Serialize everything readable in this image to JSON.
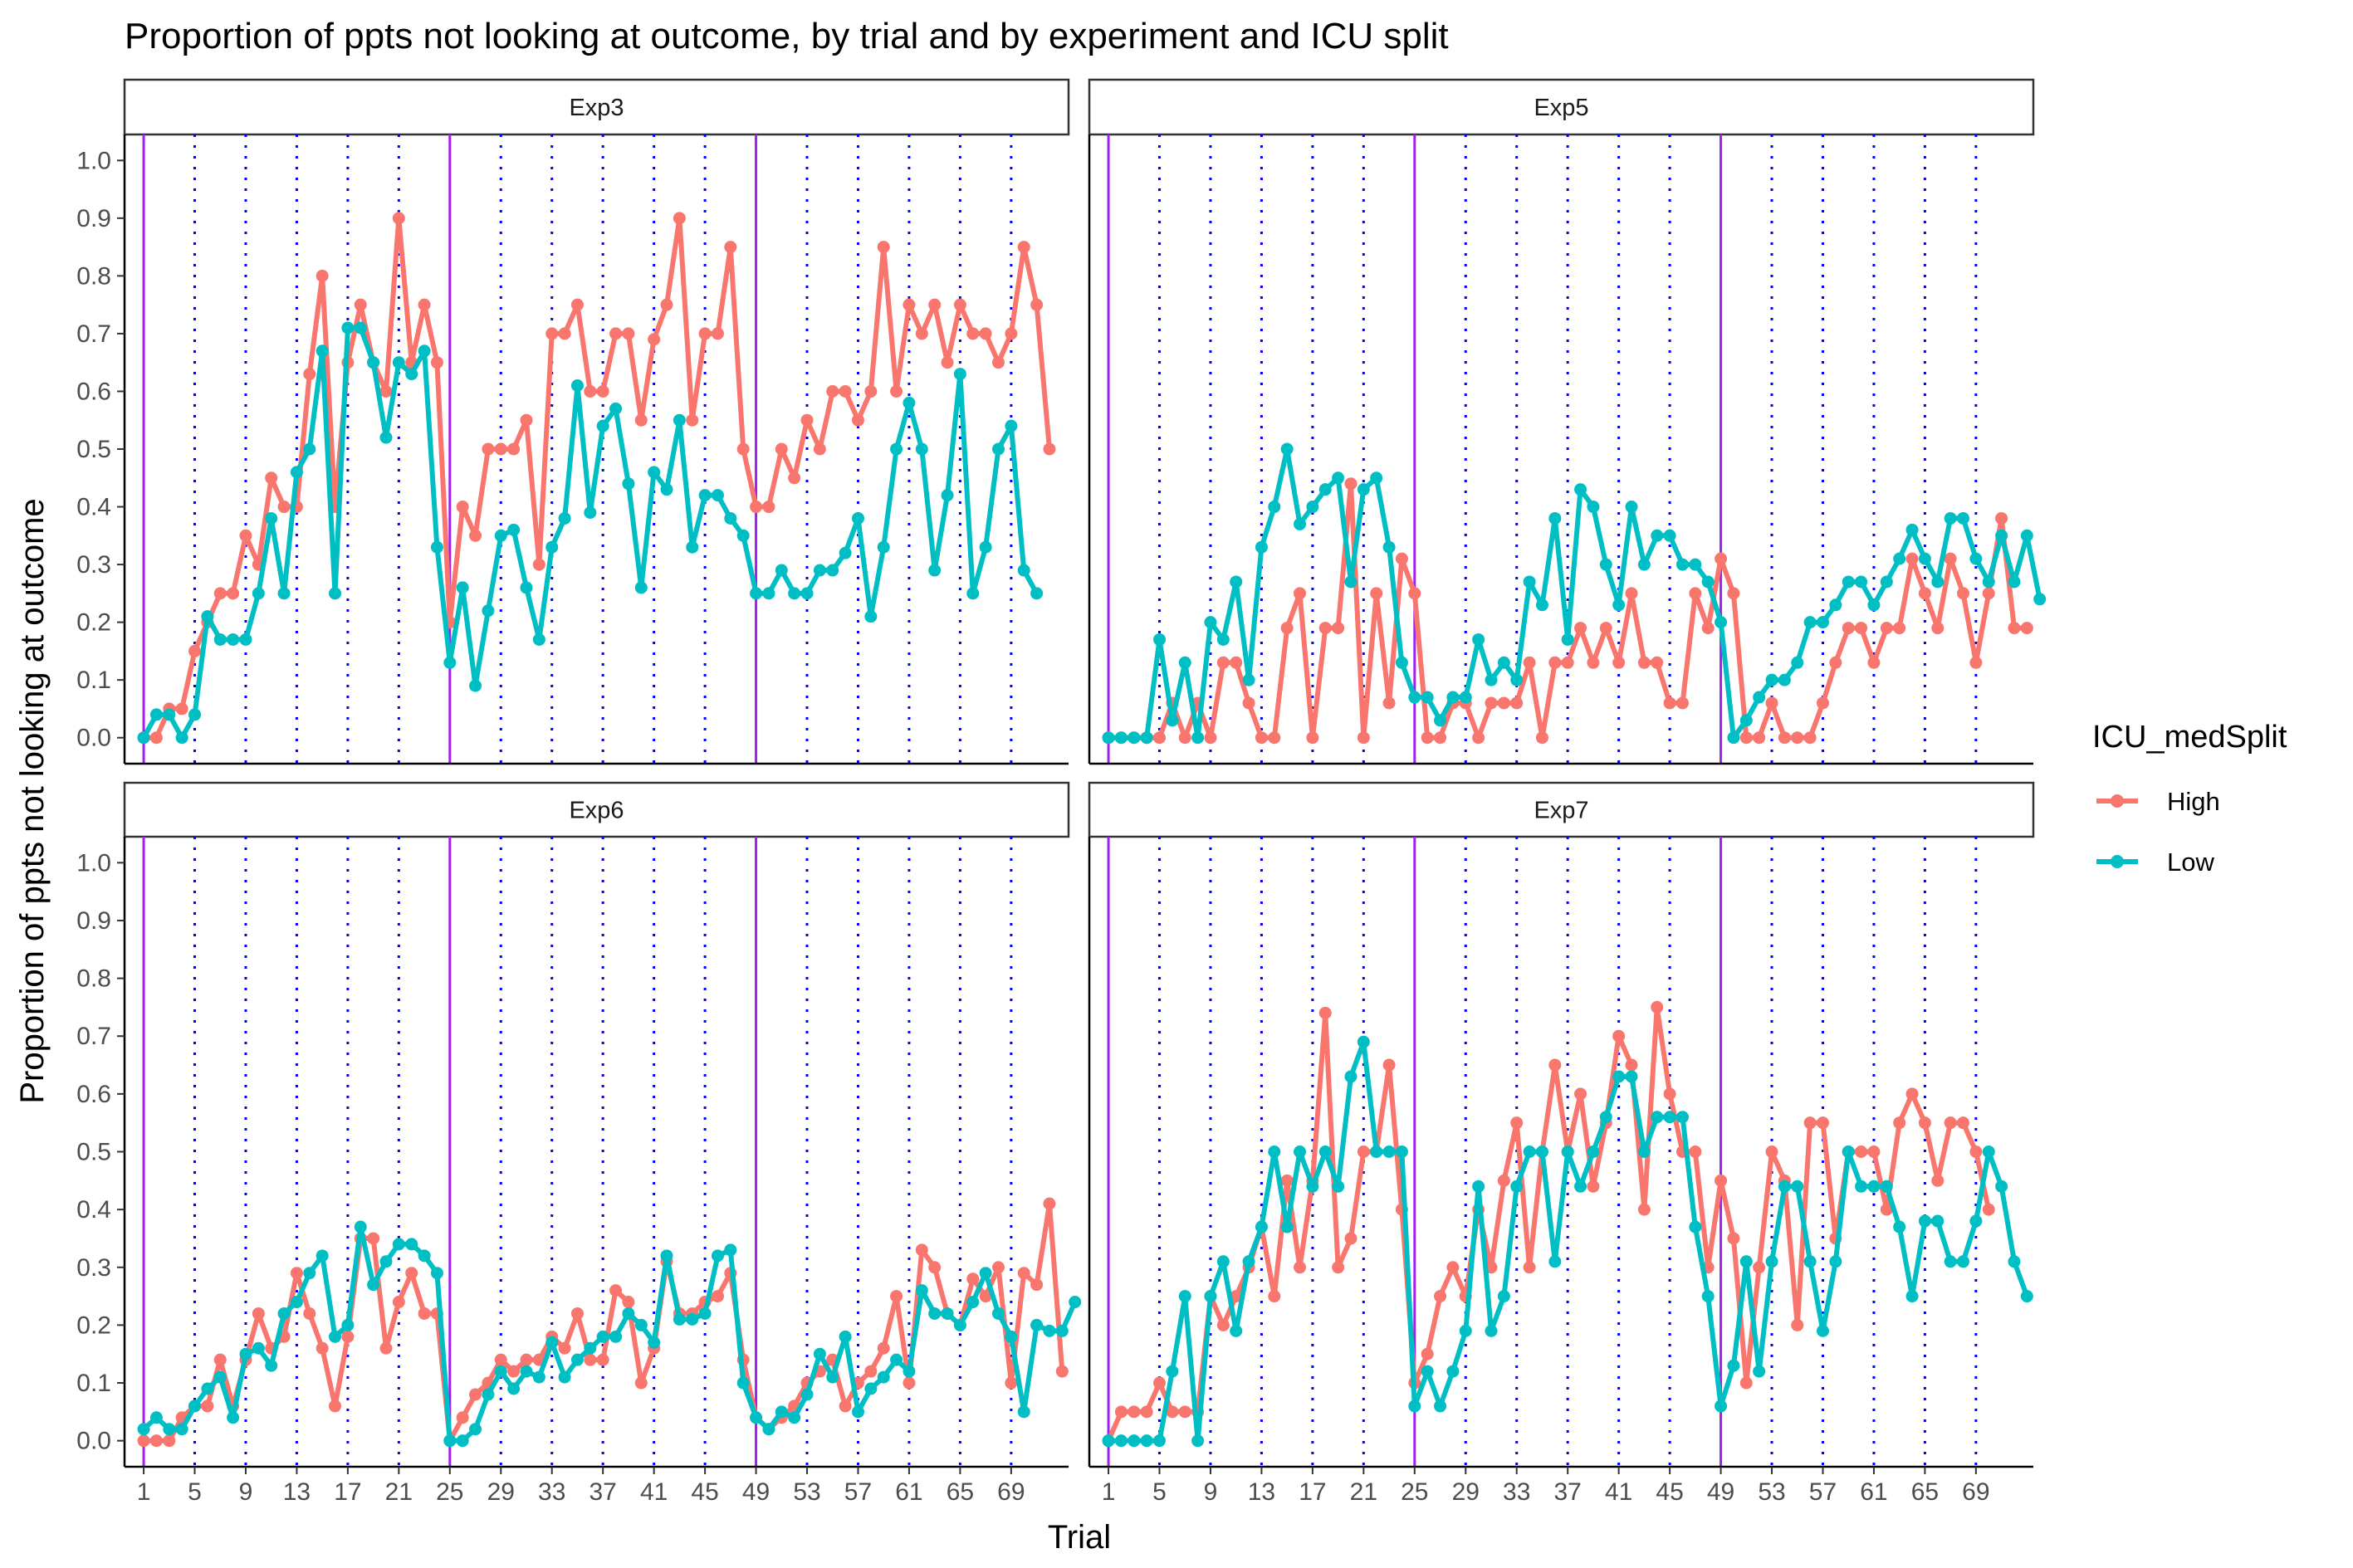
{
  "chart_data": {
    "type": "line",
    "title": "Proportion of ppts not looking at outcome, by trial and by experiment and ICU split",
    "xlabel": "Trial",
    "ylabel": "Proportion of ppts not looking at outcome",
    "x_ticks": [
      1,
      5,
      9,
      13,
      17,
      21,
      25,
      29,
      33,
      37,
      41,
      45,
      49,
      53,
      57,
      61,
      65,
      69
    ],
    "y_ticks": [
      "0.0",
      "0.1",
      "0.2",
      "0.3",
      "0.4",
      "0.5",
      "0.6",
      "0.7",
      "0.8",
      "0.9",
      "1.0"
    ],
    "xlim": [
      -0.5,
      73.5
    ],
    "ylim": [
      -0.045,
      1.045
    ],
    "grid": false,
    "reference_lines": {
      "solid_purple_x": [
        1,
        25,
        49
      ],
      "dotted_blue_x": [
        5,
        9,
        13,
        17,
        21,
        29,
        33,
        37,
        41,
        45,
        53,
        57,
        61,
        65,
        69
      ]
    },
    "legend": {
      "title": "ICU_medSplit",
      "position": "right",
      "entries": [
        {
          "label": "High",
          "color": "#F8766D"
        },
        {
          "label": "Low",
          "color": "#00BFC4"
        }
      ]
    },
    "panels": [
      {
        "name": "Exp3",
        "series": [
          {
            "name": "High",
            "color": "#F8766D",
            "values": [
              0,
              0,
              0.05,
              0.05,
              0.15,
              0.2,
              0.25,
              0.25,
              0.35,
              0.3,
              0.45,
              0.4,
              0.4,
              0.63,
              0.8,
              0.4,
              0.65,
              0.75,
              0.65,
              0.6,
              0.9,
              0.65,
              0.75,
              0.65,
              0.2,
              0.4,
              0.35,
              0.5,
              0.5,
              0.5,
              0.55,
              0.3,
              0.7,
              0.7,
              0.75,
              0.6,
              0.6,
              0.7,
              0.7,
              0.55,
              0.69,
              0.75,
              0.9,
              0.55,
              0.7,
              0.7,
              0.85,
              0.5,
              0.4,
              0.4,
              0.5,
              0.45,
              0.55,
              0.5,
              0.6,
              0.6,
              0.55,
              0.6,
              0.85,
              0.6,
              0.75,
              0.7,
              0.75,
              0.65,
              0.75,
              0.7,
              0.7,
              0.65,
              0.7,
              0.85,
              0.75,
              0.5
            ]
          },
          {
            "name": "Low",
            "color": "#00BFC4",
            "values": [
              0,
              0.04,
              0.04,
              0,
              0.04,
              0.21,
              0.17,
              0.17,
              0.17,
              0.25,
              0.38,
              0.25,
              0.46,
              0.5,
              0.67,
              0.25,
              0.71,
              0.71,
              0.65,
              0.52,
              0.65,
              0.63,
              0.67,
              0.33,
              0.13,
              0.26,
              0.09,
              0.22,
              0.35,
              0.36,
              0.26,
              0.17,
              0.33,
              0.38,
              0.61,
              0.39,
              0.54,
              0.57,
              0.44,
              0.26,
              0.46,
              0.43,
              0.55,
              0.33,
              0.42,
              0.42,
              0.38,
              0.35,
              0.25,
              0.25,
              0.29,
              0.25,
              0.25,
              0.29,
              0.29,
              0.32,
              0.38,
              0.21,
              0.33,
              0.5,
              0.58,
              0.5,
              0.29,
              0.42,
              0.63,
              0.25,
              0.33,
              0.5,
              0.54,
              0.29,
              0.25
            ]
          }
        ]
      },
      {
        "name": "Exp5",
        "series": [
          {
            "name": "High",
            "color": "#F8766D",
            "values": [
              0,
              0,
              0,
              0,
              0,
              0.06,
              0,
              0.06,
              0,
              0.13,
              0.13,
              0.06,
              0,
              0,
              0.19,
              0.25,
              0,
              0.19,
              0.19,
              0.44,
              0,
              0.25,
              0.06,
              0.31,
              0.25,
              0,
              0,
              0.06,
              0.06,
              0,
              0.06,
              0.06,
              0.06,
              0.13,
              0,
              0.13,
              0.13,
              0.19,
              0.13,
              0.19,
              0.13,
              0.25,
              0.13,
              0.13,
              0.06,
              0.06,
              0.25,
              0.19,
              0.31,
              0.25,
              0,
              0,
              0.06,
              0,
              0,
              0,
              0.06,
              0.13,
              0.19,
              0.19,
              0.13,
              0.19,
              0.19,
              0.31,
              0.25,
              0.19,
              0.31,
              0.25,
              0.13,
              0.25,
              0.38,
              0.19,
              0.19
            ]
          },
          {
            "name": "Low",
            "color": "#00BFC4",
            "values": [
              0,
              0,
              0,
              0,
              0.17,
              0.03,
              0.13,
              0,
              0.2,
              0.17,
              0.27,
              0.1,
              0.33,
              0.4,
              0.5,
              0.37,
              0.4,
              0.43,
              0.45,
              0.27,
              0.43,
              0.45,
              0.33,
              0.13,
              0.07,
              0.07,
              0.03,
              0.07,
              0.07,
              0.17,
              0.1,
              0.13,
              0.1,
              0.27,
              0.23,
              0.38,
              0.17,
              0.43,
              0.4,
              0.3,
              0.23,
              0.4,
              0.3,
              0.35,
              0.35,
              0.3,
              0.3,
              0.27,
              0.2,
              0,
              0.03,
              0.07,
              0.1,
              0.1,
              0.13,
              0.2,
              0.2,
              0.23,
              0.27,
              0.27,
              0.23,
              0.27,
              0.31,
              0.36,
              0.31,
              0.27,
              0.38,
              0.38,
              0.31,
              0.27,
              0.35,
              0.27,
              0.35,
              0.24
            ]
          }
        ]
      },
      {
        "name": "Exp6",
        "series": [
          {
            "name": "High",
            "color": "#F8766D",
            "values": [
              0,
              0,
              0,
              0.04,
              0.06,
              0.06,
              0.14,
              0.06,
              0.14,
              0.22,
              0.16,
              0.18,
              0.29,
              0.22,
              0.16,
              0.06,
              0.18,
              0.35,
              0.35,
              0.16,
              0.24,
              0.29,
              0.22,
              0.22,
              0,
              0.04,
              0.08,
              0.1,
              0.14,
              0.12,
              0.14,
              0.14,
              0.18,
              0.16,
              0.22,
              0.14,
              0.14,
              0.26,
              0.24,
              0.1,
              0.16,
              0.31,
              0.22,
              0.22,
              0.24,
              0.25,
              0.29,
              0.14,
              0.04,
              0.02,
              0.04,
              0.06,
              0.1,
              0.12,
              0.14,
              0.06,
              0.1,
              0.12,
              0.16,
              0.25,
              0.1,
              0.33,
              0.3,
              0.22,
              0.2,
              0.28,
              0.25,
              0.3,
              0.1,
              0.29,
              0.27,
              0.41,
              0.12
            ]
          },
          {
            "name": "Low",
            "color": "#00BFC4",
            "values": [
              0.02,
              0.04,
              0.02,
              0.02,
              0.06,
              0.09,
              0.11,
              0.04,
              0.15,
              0.16,
              0.13,
              0.22,
              0.24,
              0.29,
              0.32,
              0.18,
              0.2,
              0.37,
              0.27,
              0.31,
              0.34,
              0.34,
              0.32,
              0.29,
              0,
              0,
              0.02,
              0.08,
              0.12,
              0.09,
              0.12,
              0.11,
              0.17,
              0.11,
              0.14,
              0.16,
              0.18,
              0.18,
              0.22,
              0.2,
              0.17,
              0.32,
              0.21,
              0.21,
              0.22,
              0.32,
              0.33,
              0.1,
              0.04,
              0.02,
              0.05,
              0.04,
              0.08,
              0.15,
              0.11,
              0.18,
              0.05,
              0.09,
              0.11,
              0.14,
              0.12,
              0.26,
              0.22,
              0.22,
              0.2,
              0.24,
              0.29,
              0.22,
              0.18,
              0.05,
              0.2,
              0.19,
              0.19,
              0.24
            ]
          }
        ]
      },
      {
        "name": "Exp7",
        "series": [
          {
            "name": "High",
            "color": "#F8766D",
            "values": [
              0,
              0.05,
              0.05,
              0.05,
              0.1,
              0.05,
              0.05,
              0.05,
              0.25,
              0.2,
              0.25,
              0.3,
              0.37,
              0.25,
              0.45,
              0.3,
              0.45,
              0.74,
              0.3,
              0.35,
              0.5,
              0.5,
              0.65,
              0.4,
              0.1,
              0.15,
              0.25,
              0.3,
              0.25,
              0.4,
              0.3,
              0.45,
              0.55,
              0.3,
              0.5,
              0.65,
              0.5,
              0.6,
              0.44,
              0.55,
              0.7,
              0.65,
              0.4,
              0.75,
              0.6,
              0.5,
              0.5,
              0.3,
              0.45,
              0.35,
              0.1,
              0.3,
              0.5,
              0.45,
              0.2,
              0.55,
              0.55,
              0.35,
              0.5,
              0.5,
              0.5,
              0.4,
              0.55,
              0.6,
              0.55,
              0.45,
              0.55,
              0.55,
              0.5,
              0.4
            ]
          },
          {
            "name": "Low",
            "color": "#00BFC4",
            "values": [
              0,
              0,
              0,
              0,
              0,
              0.12,
              0.25,
              0,
              0.25,
              0.31,
              0.19,
              0.31,
              0.37,
              0.5,
              0.37,
              0.5,
              0.44,
              0.5,
              0.44,
              0.63,
              0.69,
              0.5,
              0.5,
              0.5,
              0.06,
              0.12,
              0.06,
              0.12,
              0.19,
              0.44,
              0.19,
              0.25,
              0.44,
              0.5,
              0.5,
              0.31,
              0.5,
              0.44,
              0.5,
              0.56,
              0.63,
              0.63,
              0.5,
              0.56,
              0.56,
              0.56,
              0.37,
              0.25,
              0.06,
              0.13,
              0.31,
              0.12,
              0.31,
              0.44,
              0.44,
              0.31,
              0.19,
              0.31,
              0.5,
              0.44,
              0.44,
              0.44,
              0.37,
              0.25,
              0.38,
              0.38,
              0.31,
              0.31,
              0.38,
              0.5,
              0.44,
              0.31,
              0.25
            ]
          }
        ]
      }
    ]
  }
}
